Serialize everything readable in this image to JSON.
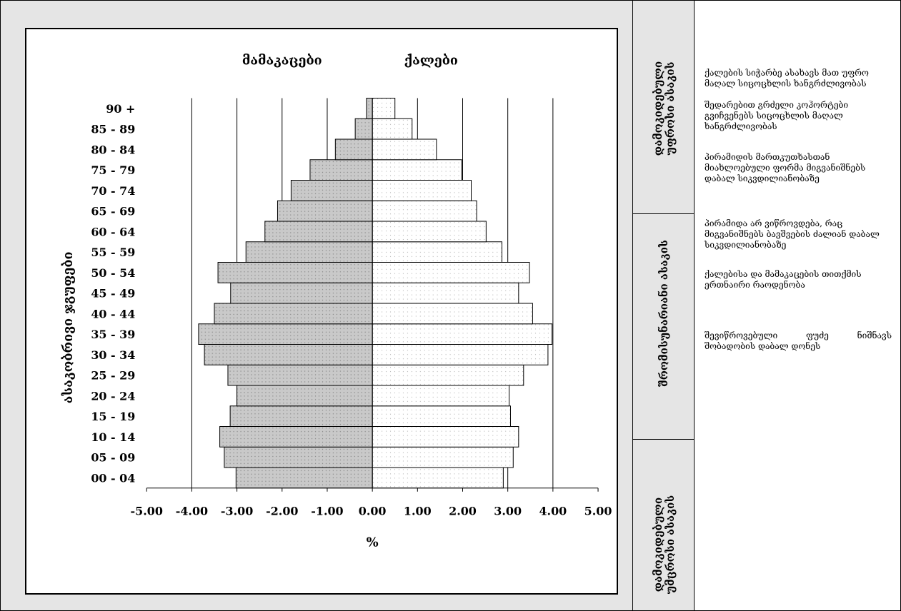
{
  "chart_data": {
    "type": "bar",
    "orientation": "horizontal",
    "subtype": "population-pyramid",
    "title": "",
    "xlabel": "%",
    "ylabel": "ასაკობრივი ჯგუფები",
    "xlim": [
      -5,
      5
    ],
    "xticks": [
      "-5.00",
      "-4.00",
      "-3.00",
      "-2.00",
      "-1.00",
      "0.00",
      "1.00",
      "2.00",
      "3.00",
      "4.00",
      "5.00"
    ],
    "grid": "vertical",
    "categories": [
      "00 - 04",
      "05 - 09",
      "10 - 14",
      "15 - 19",
      "20 - 24",
      "25 - 29",
      "30 - 34",
      "35 - 39",
      "40 - 44",
      "45 - 49",
      "50 - 54",
      "55 - 59",
      "60 - 64",
      "65 - 69",
      "70 - 74",
      "75 - 79",
      "80 - 84",
      "85 - 89",
      "90 +"
    ],
    "series": [
      {
        "name": "მამაკაცები",
        "values": [
          -3.02,
          -3.28,
          -3.38,
          -3.15,
          -3.0,
          -3.2,
          -3.72,
          -3.85,
          -3.5,
          -3.14,
          -3.42,
          -2.8,
          -2.38,
          -2.1,
          -1.8,
          -1.38,
          -0.82,
          -0.38,
          -0.13
        ]
      },
      {
        "name": "ქალები",
        "values": [
          2.9,
          3.12,
          3.24,
          3.06,
          3.03,
          3.35,
          3.89,
          3.98,
          3.55,
          3.24,
          3.48,
          2.87,
          2.52,
          2.31,
          2.19,
          1.98,
          1.42,
          0.88,
          0.5
        ]
      }
    ],
    "colors": {
      "males": "#c9c9c9",
      "females": "#ffffff",
      "dots": "#9a9a9a"
    }
  },
  "categories_panel": [
    "დამოკიდებული უფროსი ასაკის",
    "შრომისუნარიანი ასაკის",
    "დამოკიდებული უმცროსი ასაკის"
  ],
  "descriptions": [
    "ქალების სიჭარბე ასახავს მათ უფრო მაღალ სიცოცხლის ხანგრძლივობას",
    "შედარებით გრძელი კოჰორტები გვიჩვენებს სიცოცხლის მაღალ ხანგრძლივობას",
    "პირამიდის მართკუთხასთან მიახლოებული ფორმა მიგვანიშნებს დაბალ სიკვდილიანობაზე",
    "პირამიდა არ ვიწროვდება, რაც მიგვანიშნებს ბავშვების ძალიან დაბალ სიკვდილიანობაზე",
    "ქალებისა და მამაკაცების თითქმის ერთნაირი რაოდენობა",
    "შევიწროვებული ფუძე ნიშნავს შობადობის დაბალ დონეს"
  ]
}
